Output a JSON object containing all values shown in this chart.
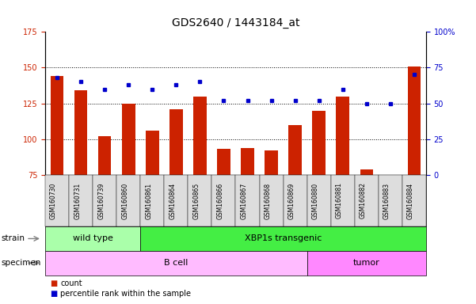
{
  "title": "GDS2640 / 1443184_at",
  "samples": [
    "GSM160730",
    "GSM160731",
    "GSM160739",
    "GSM160860",
    "GSM160861",
    "GSM160864",
    "GSM160865",
    "GSM160866",
    "GSM160867",
    "GSM160868",
    "GSM160869",
    "GSM160880",
    "GSM160881",
    "GSM160882",
    "GSM160883",
    "GSM160884"
  ],
  "bar_values": [
    144,
    134,
    102,
    125,
    106,
    121,
    130,
    93,
    94,
    92,
    110,
    120,
    130,
    79,
    75,
    151
  ],
  "dot_values": [
    68,
    65,
    60,
    63,
    60,
    63,
    65,
    52,
    52,
    52,
    52,
    52,
    60,
    50,
    50,
    70
  ],
  "ylim_left": [
    75,
    175
  ],
  "ylim_right": [
    0,
    100
  ],
  "yticks_left": [
    75,
    100,
    125,
    150,
    175
  ],
  "yticks_right": [
    0,
    25,
    50,
    75,
    100
  ],
  "bar_color": "#cc2200",
  "dot_color": "#0000cc",
  "left_tick_color": "#cc2200",
  "right_tick_color": "#0000cc",
  "strain_groups": [
    {
      "label": "wild type",
      "start": 0,
      "end": 4,
      "color": "#aaffaa"
    },
    {
      "label": "XBP1s transgenic",
      "start": 4,
      "end": 16,
      "color": "#44ee44"
    }
  ],
  "specimen_groups": [
    {
      "label": "B cell",
      "start": 0,
      "end": 11,
      "color": "#ffbbff"
    },
    {
      "label": "tumor",
      "start": 11,
      "end": 16,
      "color": "#ff88ff"
    }
  ],
  "strain_label": "strain",
  "specimen_label": "specimen",
  "legend_count": "count",
  "legend_percentile": "percentile rank within the sample",
  "xticklabel_fontsize": 5.5,
  "title_fontsize": 10,
  "bar_width": 0.55
}
